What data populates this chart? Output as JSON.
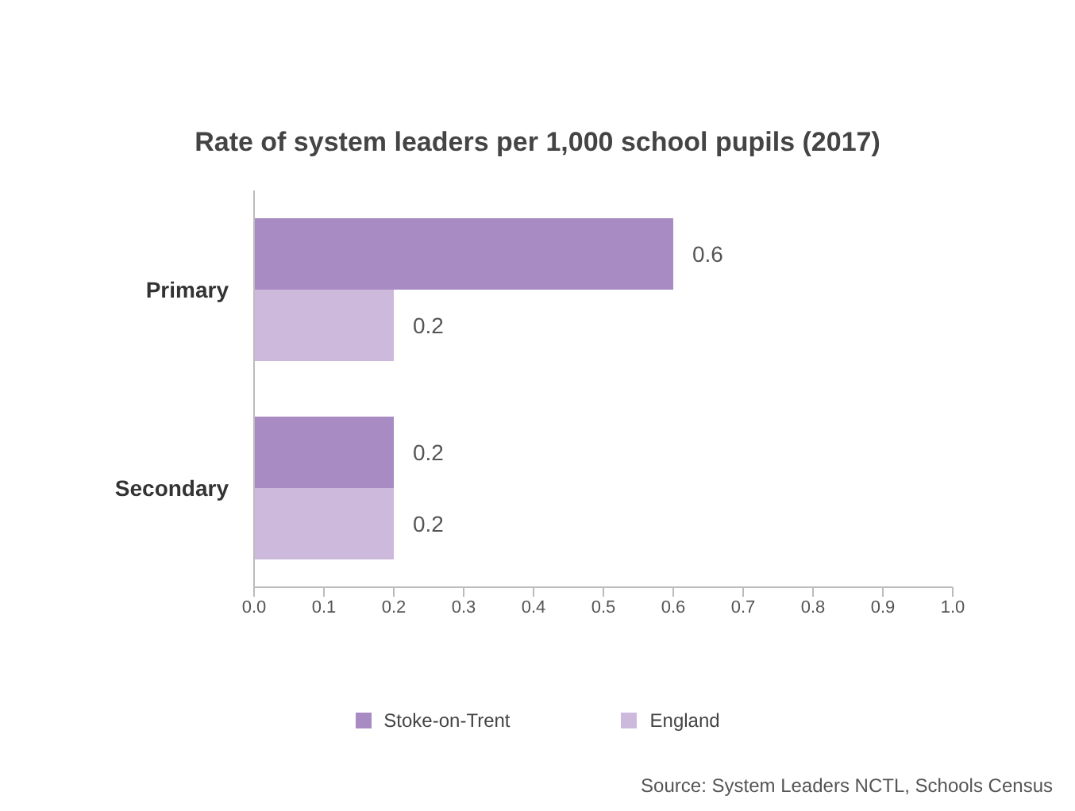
{
  "chart_data": {
    "type": "bar",
    "orientation": "horizontal",
    "title": "Rate of system leaders per 1,000 school pupils (2017)",
    "categories": [
      "Primary",
      "Secondary"
    ],
    "series": [
      {
        "name": "Stoke-on-Trent",
        "color": "#a98bc4",
        "values": [
          0.6,
          0.2
        ]
      },
      {
        "name": "England",
        "color": "#cdb9dc",
        "values": [
          0.2,
          0.2
        ]
      }
    ],
    "xlim": [
      0,
      1
    ],
    "xticks": [
      {
        "value": 0,
        "label": "0.0"
      },
      0.1,
      0.2,
      0.3,
      0.4,
      0.5,
      0.6,
      0.7,
      0.8,
      0.9,
      {
        "value": 1,
        "label": "1.0"
      }
    ],
    "data_labels": true,
    "grid": false,
    "legend": "bottom",
    "annotations": [
      "Source: System Leaders NCTL, Schools Census"
    ]
  }
}
